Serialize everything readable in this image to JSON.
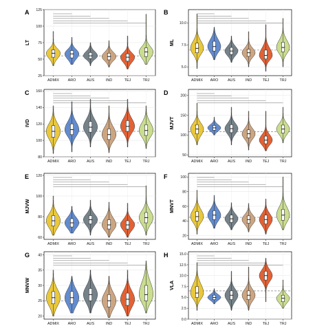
{
  "colors": {
    "ADMIX": "#E9C531",
    "ARO": "#5B86CC",
    "AUS": "#6E7B84",
    "IND": "#C9A07A",
    "TEJ": "#E05A2B",
    "TRJ": "#C7DB8A"
  },
  "chart_data": [
    {
      "type": "violin",
      "panel": "A",
      "ylabel": "LT",
      "categories": [
        "ADMIX",
        "ARO",
        "AUS",
        "IND",
        "TEJ",
        "TRJ"
      ],
      "yticks": [
        25,
        50,
        75,
        100,
        125
      ],
      "ylim": [
        25,
        125
      ],
      "refline": 55,
      "series": [
        {
          "name": "ADMIX",
          "min": 40,
          "q1": 53,
          "median": 59,
          "q3": 64,
          "max": 92
        },
        {
          "name": "ARO",
          "min": 42,
          "q1": 52,
          "median": 58,
          "q3": 63,
          "max": 83
        },
        {
          "name": "AUS",
          "min": 40,
          "q1": 51,
          "median": 55,
          "q3": 60,
          "max": 75
        },
        {
          "name": "IND",
          "min": 38,
          "q1": 49,
          "median": 54,
          "q3": 59,
          "max": 78
        },
        {
          "name": "TEJ",
          "min": 35,
          "q1": 47,
          "median": 53,
          "q3": 58,
          "max": 85
        },
        {
          "name": "TRJ",
          "min": 42,
          "q1": 54,
          "median": 61,
          "q3": 67,
          "max": 118
        }
      ]
    },
    {
      "type": "violin",
      "panel": "B",
      "ylabel": "ML",
      "categories": [
        "ADMIX",
        "ARO",
        "AUS",
        "IND",
        "TEJ",
        "TRJ"
      ],
      "yticks": [
        5.0,
        7.5,
        10.0
      ],
      "ytick_labels": [
        "5.0",
        "7.5",
        "10.0"
      ],
      "ylim": [
        4,
        11.5
      ],
      "refline": 6.9,
      "series": [
        {
          "name": "ADMIX",
          "min": 4.8,
          "q1": 6.6,
          "median": 7.1,
          "q3": 7.7,
          "max": 11.0
        },
        {
          "name": "ARO",
          "min": 5.8,
          "q1": 6.8,
          "median": 7.3,
          "q3": 7.9,
          "max": 9.5
        },
        {
          "name": "AUS",
          "min": 5.5,
          "q1": 6.4,
          "median": 6.8,
          "q3": 7.2,
          "max": 8.5
        },
        {
          "name": "IND",
          "min": 5.0,
          "q1": 6.2,
          "median": 6.6,
          "q3": 7.0,
          "max": 9.0
        },
        {
          "name": "TEJ",
          "min": 4.5,
          "q1": 5.9,
          "median": 6.3,
          "q3": 6.9,
          "max": 9.8
        },
        {
          "name": "TRJ",
          "min": 5.0,
          "q1": 6.7,
          "median": 7.2,
          "q3": 7.8,
          "max": 10.5
        }
      ]
    },
    {
      "type": "violin",
      "panel": "C",
      "ylabel": "IVD",
      "categories": [
        "ADMIX",
        "ARO",
        "AUS",
        "IND",
        "TEJ",
        "TRJ"
      ],
      "yticks": [
        80,
        100,
        120,
        140,
        160
      ],
      "ylim": [
        80,
        162
      ],
      "refline": 111,
      "series": [
        {
          "name": "ADMIX",
          "min": 84,
          "q1": 104,
          "median": 111,
          "q3": 118,
          "max": 142
        },
        {
          "name": "ARO",
          "min": 86,
          "q1": 107,
          "median": 113,
          "q3": 120,
          "max": 147
        },
        {
          "name": "AUS",
          "min": 92,
          "q1": 110,
          "median": 116,
          "q3": 123,
          "max": 150
        },
        {
          "name": "IND",
          "min": 85,
          "q1": 101,
          "median": 107,
          "q3": 114,
          "max": 142
        },
        {
          "name": "TEJ",
          "min": 92,
          "q1": 111,
          "median": 117,
          "q3": 124,
          "max": 150
        },
        {
          "name": "TRJ",
          "min": 90,
          "q1": 106,
          "median": 112,
          "q3": 119,
          "max": 142
        }
      ]
    },
    {
      "type": "violin",
      "panel": "D",
      "ylabel": "MJVT",
      "categories": [
        "ADMIX",
        "ARO",
        "AUS",
        "IND",
        "TEJ",
        "TRJ"
      ],
      "yticks": [
        50,
        100,
        150,
        200
      ],
      "ylim": [
        45,
        215
      ],
      "refline": 108,
      "series": [
        {
          "name": "ADMIX",
          "min": 75,
          "q1": 103,
          "median": 115,
          "q3": 126,
          "max": 180
        },
        {
          "name": "ARO",
          "min": 100,
          "q1": 112,
          "median": 118,
          "q3": 124,
          "max": 145
        },
        {
          "name": "AUS",
          "min": 75,
          "q1": 106,
          "median": 116,
          "q3": 126,
          "max": 170
        },
        {
          "name": "IND",
          "min": 62,
          "q1": 93,
          "median": 103,
          "q3": 113,
          "max": 160
        },
        {
          "name": "TEJ",
          "min": 60,
          "q1": 78,
          "median": 87,
          "q3": 97,
          "max": 160
        },
        {
          "name": "TRJ",
          "min": 80,
          "q1": 105,
          "median": 115,
          "q3": 125,
          "max": 170
        }
      ]
    },
    {
      "type": "violin",
      "panel": "E",
      "ylabel": "MJVW",
      "categories": [
        "ADMIX",
        "ARO",
        "AUS",
        "IND",
        "TEJ",
        "TRJ"
      ],
      "yticks": [
        60,
        80,
        100,
        120
      ],
      "ylim": [
        58,
        122
      ],
      "refline": 74,
      "series": [
        {
          "name": "ADMIX",
          "min": 62,
          "q1": 71,
          "median": 76,
          "q3": 81,
          "max": 100
        },
        {
          "name": "ARO",
          "min": 64,
          "q1": 70,
          "median": 74,
          "q3": 78,
          "max": 90
        },
        {
          "name": "AUS",
          "min": 62,
          "q1": 73,
          "median": 77,
          "q3": 81,
          "max": 96
        },
        {
          "name": "IND",
          "min": 60,
          "q1": 68,
          "median": 72,
          "q3": 77,
          "max": 94
        },
        {
          "name": "TEJ",
          "min": 60,
          "q1": 68,
          "median": 72,
          "q3": 76,
          "max": 93
        },
        {
          "name": "TRJ",
          "min": 62,
          "q1": 74,
          "median": 79,
          "q3": 84,
          "max": 110
        }
      ]
    },
    {
      "type": "violin",
      "panel": "F",
      "ylabel": "MNVT",
      "categories": [
        "ADMIX",
        "ARO",
        "AUS",
        "IND",
        "TEJ",
        "TRJ"
      ],
      "yticks": [
        20,
        40,
        60,
        80,
        100
      ],
      "ylim": [
        15,
        105
      ],
      "refline": 45,
      "series": [
        {
          "name": "ADMIX",
          "min": 22,
          "q1": 40,
          "median": 46,
          "q3": 53,
          "max": 82
        },
        {
          "name": "ARO",
          "min": 30,
          "q1": 42,
          "median": 48,
          "q3": 54,
          "max": 75
        },
        {
          "name": "AUS",
          "min": 28,
          "q1": 38,
          "median": 43,
          "q3": 48,
          "max": 65
        },
        {
          "name": "IND",
          "min": 25,
          "q1": 37,
          "median": 42,
          "q3": 47,
          "max": 64
        },
        {
          "name": "TEJ",
          "min": 22,
          "q1": 36,
          "median": 42,
          "q3": 48,
          "max": 70
        },
        {
          "name": "TRJ",
          "min": 28,
          "q1": 41,
          "median": 48,
          "q3": 56,
          "max": 100
        }
      ]
    },
    {
      "type": "violin",
      "panel": "G",
      "ylabel": "MNVW",
      "categories": [
        "ADMIX",
        "ARO",
        "AUS",
        "IND",
        "TEJ",
        "TRJ"
      ],
      "yticks": [
        20,
        25,
        30,
        35,
        40
      ],
      "ylim": [
        19,
        41
      ],
      "refline": 25,
      "series": [
        {
          "name": "ADMIX",
          "min": 20,
          "q1": 24,
          "median": 26,
          "q3": 28,
          "max": 35
        },
        {
          "name": "ARO",
          "min": 21,
          "q1": 24,
          "median": 26,
          "q3": 28,
          "max": 33
        },
        {
          "name": "AUS",
          "min": 21,
          "q1": 25,
          "median": 27,
          "q3": 29,
          "max": 35
        },
        {
          "name": "IND",
          "min": 19.5,
          "q1": 23,
          "median": 25,
          "q3": 27,
          "max": 33
        },
        {
          "name": "TEJ",
          "min": 20,
          "q1": 23.5,
          "median": 25.5,
          "q3": 27.5,
          "max": 35
        },
        {
          "name": "TRJ",
          "min": 21,
          "q1": 25,
          "median": 27,
          "q3": 30,
          "max": 38
        }
      ]
    },
    {
      "type": "violin",
      "panel": "H",
      "ylabel": "VLA",
      "categories": [
        "ADMIX",
        "ARO",
        "AUS",
        "IND",
        "TEJ",
        "TRJ"
      ],
      "yticks": [
        0.0,
        2.5,
        5.0,
        7.5,
        10.0,
        12.5,
        15.0
      ],
      "ytick_labels": [
        "0.0",
        "2.5",
        "5.0",
        "7.5",
        "10.0",
        "12.5",
        "15.0"
      ],
      "ylim": [
        0,
        15.5
      ],
      "refline": 6.5,
      "series": [
        {
          "name": "ADMIX",
          "min": 2,
          "q1": 5,
          "median": 6,
          "q3": 7.5,
          "max": 13
        },
        {
          "name": "ARO",
          "min": 3.5,
          "q1": 4.5,
          "median": 5,
          "q3": 5.5,
          "max": 7
        },
        {
          "name": "AUS",
          "min": 2,
          "q1": 4.5,
          "median": 5.5,
          "q3": 6.5,
          "max": 11
        },
        {
          "name": "IND",
          "min": 2,
          "q1": 4.5,
          "median": 5.5,
          "q3": 6.5,
          "max": 12
        },
        {
          "name": "TEJ",
          "min": 4,
          "q1": 9,
          "median": 10,
          "q3": 11,
          "max": 14
        },
        {
          "name": "TRJ",
          "min": 2.5,
          "q1": 4,
          "median": 4.8,
          "q3": 5.5,
          "max": 9
        }
      ]
    }
  ]
}
